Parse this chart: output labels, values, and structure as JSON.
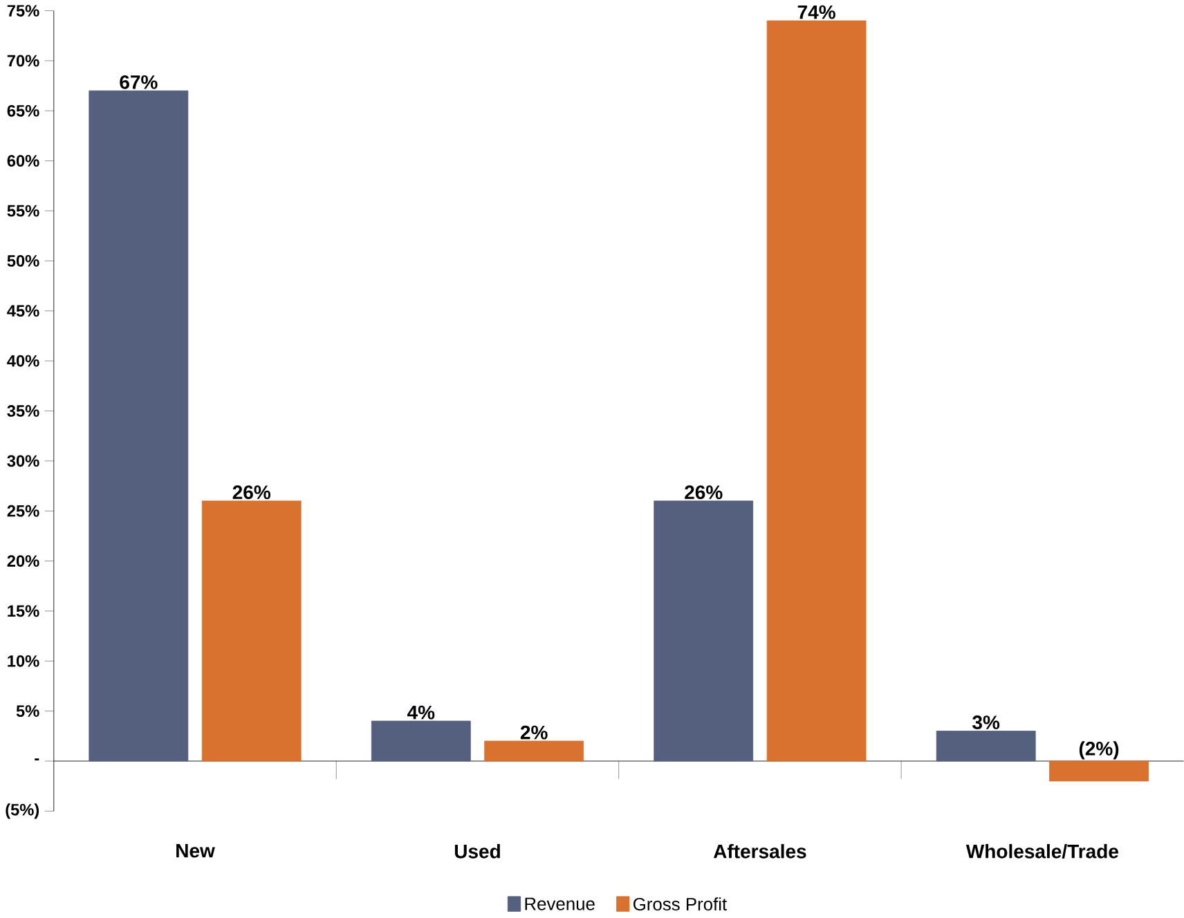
{
  "chart_data": {
    "type": "bar",
    "categories": [
      "New",
      "Used",
      "Aftersales",
      "Wholesale/Trade"
    ],
    "series": [
      {
        "name": "Revenue",
        "color": "#555f7e",
        "values": [
          67,
          4,
          26,
          3
        ],
        "value_labels": [
          "67%",
          "4%",
          "26%",
          "3%"
        ]
      },
      {
        "name": "Gross Profit",
        "color": "#d9722f",
        "values": [
          26,
          2,
          74,
          -2
        ],
        "value_labels": [
          "26%",
          "2%",
          "74%",
          "(2%)"
        ]
      }
    ],
    "ylim": [
      -5,
      75
    ],
    "yticks": [
      {
        "value": -5,
        "label": "(5%)"
      },
      {
        "value": 0,
        "label": "-"
      },
      {
        "value": 5,
        "label": "5%"
      },
      {
        "value": 10,
        "label": "10%"
      },
      {
        "value": 15,
        "label": "15%"
      },
      {
        "value": 20,
        "label": "20%"
      },
      {
        "value": 25,
        "label": "25%"
      },
      {
        "value": 30,
        "label": "30%"
      },
      {
        "value": 35,
        "label": "35%"
      },
      {
        "value": 40,
        "label": "40%"
      },
      {
        "value": 45,
        "label": "45%"
      },
      {
        "value": 50,
        "label": "50%"
      },
      {
        "value": 55,
        "label": "55%"
      },
      {
        "value": 60,
        "label": "60%"
      },
      {
        "value": 65,
        "label": "65%"
      },
      {
        "value": 70,
        "label": "70%"
      },
      {
        "value": 75,
        "label": "75%"
      }
    ],
    "legend": "bottom"
  }
}
